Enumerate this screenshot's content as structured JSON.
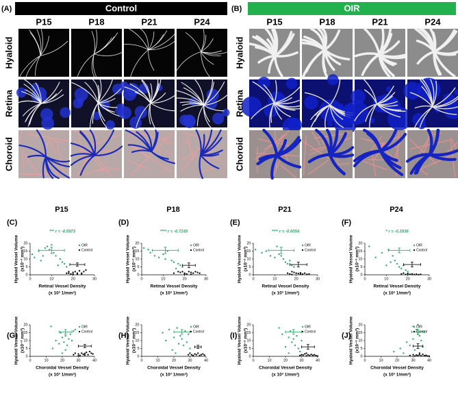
{
  "panels": [
    {
      "label": "(A)",
      "title": "Control"
    },
    {
      "label": "(B)",
      "title": "OIR"
    }
  ],
  "columns": [
    "P15",
    "P18",
    "P21",
    "P24"
  ],
  "rows": [
    "Hyaloid",
    "Retina",
    "Choroid"
  ],
  "chart_data": [
    {
      "type": "scatter",
      "label": "(C)",
      "annotation": "*** r = -0.5973",
      "xlabel": [
        "Retinal Vessel Density",
        "(x 10³ 1/mm²)"
      ],
      "ylabel": [
        "Hyaloid Vessel Volume",
        "(x10⁻³ mm³)"
      ],
      "xlim": [
        0,
        30
      ],
      "ylim": [
        0,
        20
      ],
      "xticks": [
        0,
        10,
        20,
        30
      ],
      "yticks": [
        0,
        5,
        10,
        15,
        20
      ],
      "legend": "upper right",
      "series": [
        {
          "name": "OIR",
          "color": "#2eaa6a",
          "x": [
            1,
            2,
            4,
            5,
            7,
            8,
            10,
            11,
            12,
            14,
            15,
            16,
            17,
            13,
            9,
            6
          ],
          "y": [
            13,
            11,
            15,
            9,
            17,
            18,
            19,
            14,
            12,
            10,
            8,
            7,
            5,
            6,
            16,
            12
          ],
          "mean_x": 10,
          "mean_y": 15.5,
          "err_x": 6,
          "err_y": 2
        },
        {
          "name": "Control",
          "color": "#111111",
          "x": [
            17,
            18,
            19,
            20,
            21,
            22,
            23,
            24,
            25,
            26,
            20,
            22,
            24,
            18
          ],
          "y": [
            1,
            2,
            0.5,
            1.5,
            2,
            1,
            2.5,
            1,
            2,
            3,
            0.5,
            0.3,
            0.5,
            1
          ],
          "mean_x": 22,
          "mean_y": 6.5,
          "err_x": 3.5,
          "err_y": 1
        }
      ]
    },
    {
      "type": "scatter",
      "label": "(D)",
      "annotation": "**** r = -0.7245",
      "xlabel": [
        "Retinal Vessel Density",
        "(x 10³ 1/mm²)"
      ],
      "ylabel": [
        "Hyaloid Vessel Volume",
        "(x10⁻³ mm³)"
      ],
      "xlim": [
        0,
        30
      ],
      "ylim": [
        0,
        20
      ],
      "xticks": [
        0,
        10,
        20,
        30
      ],
      "yticks": [
        0,
        5,
        10,
        15,
        20
      ],
      "legend": "upper right",
      "series": [
        {
          "name": "OIR",
          "color": "#2eaa6a",
          "x": [
            1,
            3,
            4,
            6,
            8,
            10,
            12,
            14,
            15,
            17,
            18,
            19,
            16,
            11
          ],
          "y": [
            17,
            16,
            14,
            12,
            11,
            13,
            15,
            9,
            8,
            7,
            6,
            5,
            4,
            10
          ],
          "mean_x": 11,
          "mean_y": 15.5,
          "err_x": 6,
          "err_y": 2
        },
        {
          "name": "Control",
          "color": "#111111",
          "x": [
            15,
            17,
            18,
            19,
            20,
            21,
            22,
            23,
            24,
            25,
            26,
            27,
            20,
            23
          ],
          "y": [
            1,
            2,
            1.5,
            2,
            1,
            0.5,
            2,
            1.5,
            1,
            2,
            1.5,
            1,
            0.5,
            0.3
          ],
          "mean_x": 22,
          "mean_y": 6,
          "err_x": 3,
          "err_y": 1.5
        }
      ]
    },
    {
      "type": "scatter",
      "label": "(E)",
      "annotation": "**** r = -0.6054",
      "xlabel": [
        "Retinal Vessel Density",
        "(x 10³ 1/mm²)"
      ],
      "ylabel": [
        "Hyaloid Vessel Volume",
        "(x10⁻³ mm³)"
      ],
      "xlim": [
        0,
        30
      ],
      "ylim": [
        0,
        20
      ],
      "xticks": [
        0,
        10,
        20,
        30
      ],
      "yticks": [
        0,
        5,
        10,
        15,
        20
      ],
      "legend": "upper right",
      "series": [
        {
          "name": "OIR",
          "color": "#2eaa6a",
          "x": [
            1,
            4,
            6,
            8,
            10,
            12,
            14,
            15,
            16,
            17,
            18,
            19,
            13,
            11
          ],
          "y": [
            16,
            14,
            15,
            12,
            11,
            13,
            10,
            8,
            7,
            9,
            6,
            5,
            12,
            18
          ],
          "mean_x": 13,
          "mean_y": 15.5,
          "err_x": 6,
          "err_y": 2
        },
        {
          "name": "Control",
          "color": "#111111",
          "x": [
            16,
            17,
            18,
            19,
            20,
            21,
            22,
            23,
            24,
            25,
            26,
            18,
            22
          ],
          "y": [
            1,
            0.5,
            2,
            1.5,
            1,
            0.8,
            1.2,
            0.5,
            1,
            0.3,
            0.5,
            0.2,
            0.4
          ],
          "mean_x": 21,
          "mean_y": 6.5,
          "err_x": 4,
          "err_y": 1.5
        }
      ]
    },
    {
      "type": "scatter",
      "label": "(F)",
      "annotation": "* r = -0.3936",
      "xlabel": [
        "Retinal Vessel Density",
        "(x 10³ 1/mm²)"
      ],
      "ylabel": [
        "Hyaloid Vessel Volume",
        "(x10⁻³ mm³)"
      ],
      "xlim": [
        0,
        30
      ],
      "ylim": [
        0,
        20
      ],
      "xticks": [
        0,
        10,
        20,
        30
      ],
      "yticks": [
        0,
        5,
        10,
        15,
        20
      ],
      "legend": "upper right",
      "series": [
        {
          "name": "OIR",
          "color": "#2eaa6a",
          "x": [
            2,
            5,
            8,
            10,
            12,
            14,
            15,
            16,
            17,
            18,
            19,
            20,
            13,
            11
          ],
          "y": [
            18,
            11,
            14,
            6,
            8,
            9,
            7,
            5,
            4,
            6,
            3,
            2,
            12,
            16
          ],
          "mean_x": 16,
          "mean_y": 15.5,
          "err_x": 5,
          "err_y": 1.5
        },
        {
          "name": "Control",
          "color": "#111111",
          "x": [
            17,
            18,
            19,
            20,
            21,
            22,
            23,
            24,
            25,
            26,
            20,
            22
          ],
          "y": [
            0.5,
            1,
            0.2,
            0.8,
            0.3,
            0.5,
            0.2,
            0.4,
            0.1,
            0.3,
            0.6,
            0.2
          ],
          "mean_x": 22,
          "mean_y": 6.5,
          "err_x": 4,
          "err_y": 1.5
        }
      ]
    },
    {
      "type": "scatter",
      "label": "(G)",
      "xlabel": [
        "Choroidal Vessel Density",
        "(x 10³ 1/mm²)"
      ],
      "ylabel": [
        "Hyaloid Vessel Volume",
        "(x10⁻³ mm³)"
      ],
      "xlim": [
        0,
        40
      ],
      "ylim": [
        0,
        20
      ],
      "xticks": [
        0,
        10,
        20,
        30,
        40
      ],
      "yticks": [
        0,
        5,
        10,
        15,
        20
      ],
      "legend": "upper right",
      "series": [
        {
          "name": "OIR",
          "color": "#2eaa6a",
          "x": [
            13,
            14,
            16,
            18,
            19,
            20,
            21,
            22,
            23,
            24,
            25,
            26,
            27,
            28,
            22,
            20
          ],
          "y": [
            19,
            5,
            10,
            8,
            15,
            12,
            9,
            13,
            7,
            11,
            14,
            10,
            16,
            17,
            4,
            2
          ],
          "mean_x": 22,
          "mean_y": 15.5,
          "err_x": 4,
          "err_y": 1.5
        },
        {
          "name": "Control",
          "color": "#111111",
          "x": [
            27,
            28,
            30,
            31,
            32,
            33,
            34,
            35,
            36,
            37,
            38,
            39,
            30,
            34
          ],
          "y": [
            1,
            2,
            1.5,
            0.5,
            2,
            1.2,
            1.8,
            2.5,
            1,
            3,
            2,
            1.5,
            0.3,
            0.8
          ],
          "mean_x": 34,
          "mean_y": 6.5,
          "err_x": 4,
          "err_y": 1
        }
      ]
    },
    {
      "type": "scatter",
      "label": "(H)",
      "xlabel": [
        "Choroidal Vessel Density",
        "(x 10³ 1/mm²)"
      ],
      "ylabel": [
        "Hyaloid Vessel Volume",
        "(x10⁻³ mm³)"
      ],
      "xlim": [
        0,
        40
      ],
      "ylim": [
        0,
        20
      ],
      "xticks": [
        0,
        10,
        20,
        30,
        40
      ],
      "yticks": [
        0,
        5,
        10,
        15,
        20
      ],
      "legend": "upper right",
      "series": [
        {
          "name": "OIR",
          "color": "#2eaa6a",
          "x": [
            13,
            15,
            17,
            19,
            20,
            22,
            23,
            24,
            25,
            26,
            27,
            28,
            29,
            30,
            21
          ],
          "y": [
            15,
            10,
            17,
            4,
            12,
            18,
            8,
            13,
            11,
            7,
            16,
            9,
            14,
            5,
            2
          ],
          "mean_x": 25,
          "mean_y": 15.5,
          "err_x": 5,
          "err_y": 1.5
        },
        {
          "name": "Control",
          "color": "#111111",
          "x": [
            29,
            30,
            31,
            32,
            33,
            34,
            35,
            36,
            37,
            38,
            39,
            32
          ],
          "y": [
            1,
            2,
            1,
            0.5,
            1.5,
            1,
            2,
            0.5,
            1,
            1.5,
            0.8,
            0.3
          ],
          "mean_x": 35,
          "mean_y": 6,
          "err_x": 2,
          "err_y": 1
        }
      ]
    },
    {
      "type": "scatter",
      "label": "(I)",
      "xlabel": [
        "Choroidal Vessel Density",
        "(x 10³ 1/mm²)"
      ],
      "ylabel": [
        "Hyaloid Vessel Volume",
        "(x10⁻³ mm³)"
      ],
      "xlim": [
        0,
        40
      ],
      "ylim": [
        0,
        20
      ],
      "xticks": [
        0,
        10,
        20,
        30,
        40
      ],
      "yticks": [
        0,
        5,
        10,
        15,
        20
      ],
      "legend": "upper right",
      "series": [
        {
          "name": "OIR",
          "color": "#2eaa6a",
          "x": [
            16,
            18,
            20,
            22,
            23,
            24,
            25,
            26,
            27,
            28,
            29,
            30,
            22
          ],
          "y": [
            18,
            14,
            6,
            12,
            16,
            9,
            11,
            7,
            13,
            5,
            3,
            10,
            2
          ],
          "mean_x": 25,
          "mean_y": 15.5,
          "err_x": 5,
          "err_y": 1.5
        },
        {
          "name": "Control",
          "color": "#111111",
          "x": [
            29,
            30,
            31,
            32,
            33,
            34,
            35,
            36,
            37,
            38,
            39,
            40,
            33
          ],
          "y": [
            0.5,
            1,
            0.8,
            1.5,
            0.3,
            1,
            0.5,
            1.2,
            0.6,
            1,
            0.4,
            0.2,
            2
          ],
          "mean_x": 34,
          "mean_y": 6,
          "err_x": 4,
          "err_y": 1.5
        }
      ]
    },
    {
      "type": "scatter",
      "label": "(J)",
      "xlabel": [
        "Choroidal Vessel Density",
        "(x 10³ 1/mm²)"
      ],
      "ylabel": [
        "Hyaloid Vessel Volume",
        "(x10⁻³ mm³)"
      ],
      "xlim": [
        0,
        40
      ],
      "ylim": [
        0,
        20
      ],
      "xticks": [
        0,
        10,
        20,
        30,
        40
      ],
      "yticks": [
        0,
        5,
        10,
        15,
        20
      ],
      "legend": "upper right",
      "series": [
        {
          "name": "OIR",
          "color": "#2eaa6a",
          "x": [
            18,
            22,
            24,
            26,
            28,
            30,
            31,
            32,
            33,
            34,
            35,
            36,
            30,
            33
          ],
          "y": [
            3,
            5,
            2,
            9,
            7,
            11,
            4,
            17,
            14,
            13,
            10,
            6,
            19,
            20
          ],
          "mean_x": 33,
          "mean_y": 15.5,
          "err_x": 4,
          "err_y": 1.5
        },
        {
          "name": "Control",
          "color": "#111111",
          "x": [
            28,
            30,
            31,
            32,
            33,
            34,
            35,
            36,
            37,
            38,
            39,
            40,
            34
          ],
          "y": [
            0.5,
            1,
            0.2,
            0.8,
            0.5,
            1,
            0.3,
            1.2,
            0.4,
            0.6,
            0.2,
            0.1,
            2
          ],
          "mean_x": 33,
          "mean_y": 6.5,
          "err_x": 3,
          "err_y": 1.5
        }
      ]
    }
  ]
}
